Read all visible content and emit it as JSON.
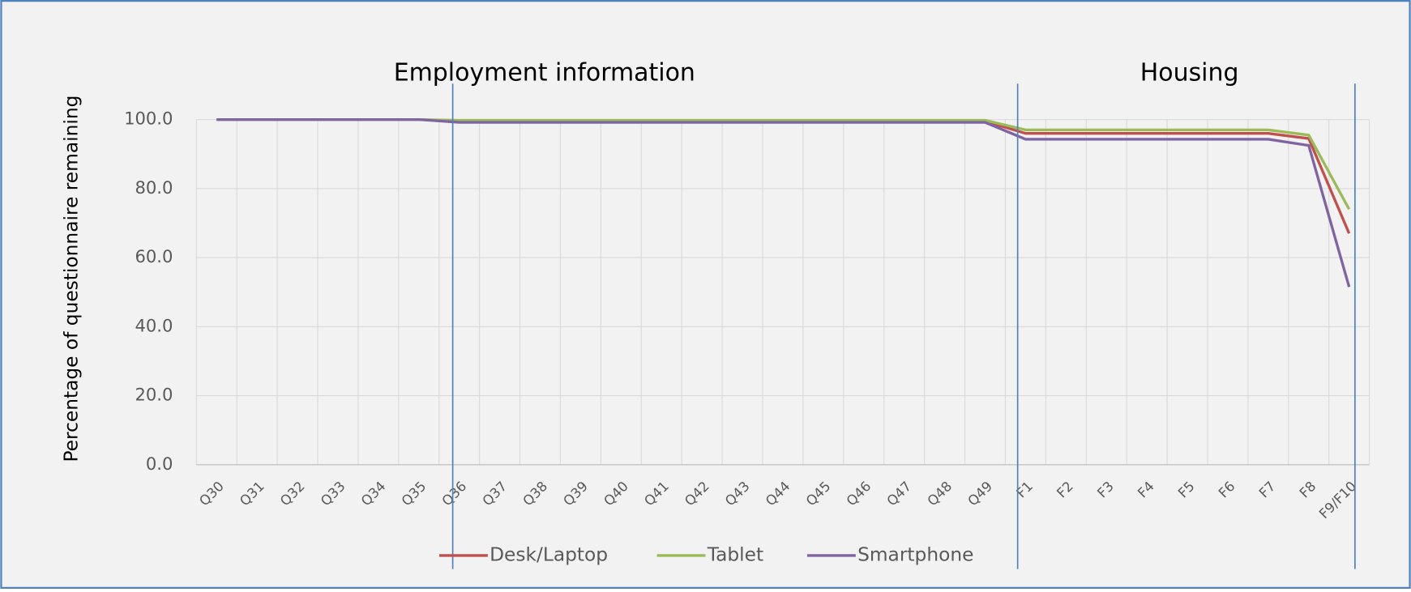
{
  "chart_data": {
    "type": "line",
    "y_label": "Percentage of questionnaire remaining",
    "annotations": [
      "Employment information",
      "Housing"
    ],
    "categories": [
      "Q30",
      "Q31",
      "Q32",
      "Q33",
      "Q34",
      "Q35",
      "Q36",
      "Q37",
      "Q38",
      "Q39",
      "Q40",
      "Q41",
      "Q42",
      "Q43",
      "Q44",
      "Q45",
      "Q46",
      "Q47",
      "Q48",
      "Q49",
      "F1",
      "F2",
      "F3",
      "F4",
      "F5",
      "F6",
      "F7",
      "F8",
      "F9/F10"
    ],
    "series": [
      {
        "name": "Desk/Laptop",
        "color": "#c0504d",
        "values": [
          100,
          100,
          100,
          100,
          100,
          100,
          99.5,
          99.5,
          99.5,
          99.5,
          99.5,
          99.5,
          99.5,
          99.5,
          99.5,
          99.5,
          99.5,
          99.5,
          99.5,
          99.5,
          96,
          96,
          96,
          96,
          96,
          96,
          96,
          94.5,
          67
        ]
      },
      {
        "name": "Tablet",
        "color": "#9bbb59",
        "values": [
          100,
          100,
          100,
          100,
          100,
          100,
          99.8,
          99.8,
          99.8,
          99.8,
          99.8,
          99.8,
          99.8,
          99.8,
          99.8,
          99.8,
          99.8,
          99.8,
          99.8,
          99.8,
          97,
          97,
          97,
          97,
          97,
          97,
          97,
          95.5,
          74
        ]
      },
      {
        "name": "Smartphone",
        "color": "#8064a2",
        "values": [
          100,
          100,
          100,
          100,
          100,
          100,
          99.2,
          99.2,
          99.2,
          99.2,
          99.2,
          99.2,
          99.2,
          99.2,
          99.2,
          99.2,
          99.2,
          99.2,
          99.2,
          99.2,
          94.3,
          94.3,
          94.3,
          94.3,
          94.3,
          94.3,
          94.3,
          92.5,
          51.5
        ]
      }
    ],
    "ylim": [
      0,
      100
    ],
    "yticks": [
      {
        "value": 0,
        "label": "0.0"
      },
      {
        "value": 20,
        "label": "20.0"
      },
      {
        "value": 40,
        "label": "40.0"
      },
      {
        "value": 60,
        "label": "60.0"
      },
      {
        "value": 80,
        "label": "80.0"
      },
      {
        "value": 100,
        "label": "100.0"
      }
    ],
    "grid": true
  }
}
